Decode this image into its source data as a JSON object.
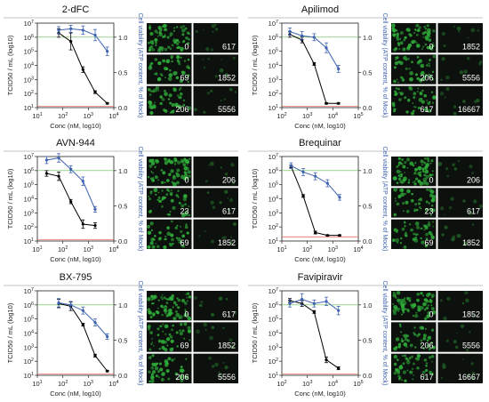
{
  "chart_data": [
    {
      "type": "line",
      "title": "2-dFC",
      "xlabel": "Conc (nM, log10)",
      "ylabel": "TCID50 / mL (log10)",
      "ylabel2": "Cell viability (ATP content, % of Mock)",
      "x_ticks": [
        "10^1",
        "10^2",
        "10^3",
        "10^4"
      ],
      "xlim_log10": [
        1,
        4
      ],
      "y_ticks": [
        "10^1",
        "10^2",
        "10^3",
        "10^4",
        "10^5",
        "10^6",
        "10^7"
      ],
      "ylim_log10": [
        1,
        7
      ],
      "y2_ticks": [
        "0.0",
        "0.5",
        "1.0"
      ],
      "y2lim": [
        0,
        1.2
      ],
      "series": [
        {
          "color": "#000000",
          "axis": "left",
          "x": [
            69,
            206,
            617,
            1852,
            5556
          ],
          "y_log10": [
            6.3,
            5.7,
            3.7,
            2.1,
            1.3
          ],
          "err_log10": [
            0.3,
            0.6,
            0.2,
            0.1,
            0.05
          ]
        },
        {
          "color": "#3f63b0",
          "axis": "right",
          "x": [
            69,
            206,
            617,
            1852,
            5556
          ],
          "y": [
            1.1,
            1.12,
            1.1,
            1.03,
            0.8
          ],
          "err": [
            0.05,
            0.05,
            0.06,
            0.08,
            0.06
          ]
        }
      ],
      "hline_left_log10": 1.1,
      "hline_right": 1.0,
      "panels": [
        "0",
        "617",
        "69",
        "1852",
        "206",
        "5556"
      ]
    },
    {
      "type": "line",
      "title": "Apilimod",
      "xlabel": "Conc (nM, log10)",
      "ylabel": "TCID50 / mL (log10)",
      "ylabel2": "Cell viability (ATP content, % of Mock)",
      "x_ticks": [
        "10^2",
        "10^3",
        "10^4",
        "10^5"
      ],
      "xlim_log10": [
        2,
        5
      ],
      "y_ticks": [
        "10^1",
        "10^2",
        "10^3",
        "10^4",
        "10^5",
        "10^6",
        "10^7"
      ],
      "ylim_log10": [
        1,
        7
      ],
      "y2_ticks": [
        "0.0",
        "0.5",
        "1.0"
      ],
      "y2lim": [
        0,
        1.2
      ],
      "series": [
        {
          "color": "#000000",
          "axis": "left",
          "x": [
            206,
            617,
            1852,
            5556,
            16667
          ],
          "y_log10": [
            6.2,
            5.8,
            4.1,
            1.3,
            1.3
          ],
          "err_log10": [
            0.2,
            0.2,
            0.1,
            0.05,
            0.05
          ]
        },
        {
          "color": "#3f63b0",
          "axis": "right",
          "x": [
            206,
            617,
            1852,
            5556,
            16667
          ],
          "y": [
            1.08,
            1.02,
            1.0,
            0.85,
            0.55
          ],
          "err": [
            0.05,
            0.06,
            0.05,
            0.07,
            0.05
          ]
        }
      ],
      "hline_left_log10": 1.1,
      "hline_right": 1.0,
      "panels": [
        "0",
        "1852",
        "206",
        "5556",
        "617",
        "16667"
      ]
    },
    {
      "type": "line",
      "title": "AVN-944",
      "xlabel": "Conc (nM, log10)",
      "ylabel": "TCID50 / mL (log10)",
      "ylabel2": "Cell viability (ATP content, % of Mock)",
      "x_ticks": [
        "10^1",
        "10^2",
        "10^3",
        "10^4"
      ],
      "xlim_log10": [
        1,
        4
      ],
      "y_ticks": [
        "10^1",
        "10^2",
        "10^3",
        "10^4",
        "10^5",
        "10^6",
        "10^7"
      ],
      "ylim_log10": [
        1,
        7
      ],
      "y2_ticks": [
        "0.0",
        "0.5",
        "1.0"
      ],
      "y2lim": [
        0,
        1.2
      ],
      "series": [
        {
          "color": "#000000",
          "axis": "left",
          "x": [
            23,
            69,
            206,
            617,
            1852
          ],
          "y_log10": [
            5.8,
            5.6,
            3.8,
            2.2,
            2.1
          ],
          "err_log10": [
            0.2,
            0.3,
            0.15,
            0.3,
            0.2
          ]
        },
        {
          "color": "#3f63b0",
          "axis": "right",
          "x": [
            23,
            69,
            206,
            617,
            1852
          ],
          "y": [
            1.15,
            1.18,
            1.02,
            0.85,
            0.45
          ],
          "err": [
            0.05,
            0.06,
            0.05,
            0.06,
            0.04
          ]
        }
      ],
      "hline_left_log10": 1.1,
      "hline_right": 1.0,
      "panels": [
        "0",
        "206",
        "23",
        "617",
        "69",
        "1852"
      ]
    },
    {
      "type": "line",
      "title": "Brequinar",
      "xlabel": "Conc (nM, log10)",
      "ylabel": "TCID50 / mL (log10)",
      "ylabel2": "Cell viability (ATP content, % of Mock)",
      "x_ticks": [
        "10^1",
        "10^2",
        "10^3",
        "10^4"
      ],
      "xlim_log10": [
        1,
        4
      ],
      "y_ticks": [
        "10^1",
        "10^2",
        "10^3",
        "10^4",
        "10^5",
        "10^6",
        "10^7"
      ],
      "ylim_log10": [
        1,
        7
      ],
      "y2_ticks": [
        "0.0",
        "0.5",
        "1.0"
      ],
      "y2lim": [
        0,
        1.2
      ],
      "series": [
        {
          "color": "#000000",
          "axis": "left",
          "x": [
            23,
            69,
            206,
            617,
            1852
          ],
          "y_log10": [
            6.3,
            4.2,
            1.6,
            1.4,
            1.4
          ],
          "err_log10": [
            0.1,
            0.1,
            0.1,
            0.05,
            0.05
          ]
        },
        {
          "color": "#3f63b0",
          "axis": "right",
          "x": [
            23,
            69,
            206,
            617,
            1852
          ],
          "y": [
            1.07,
            0.98,
            0.92,
            0.82,
            0.62
          ],
          "err": [
            0.04,
            0.05,
            0.05,
            0.05,
            0.04
          ]
        }
      ],
      "hline_left_log10": 1.3,
      "hline_right": 1.0,
      "panels": [
        "0",
        "206",
        "23",
        "617",
        "69",
        "1852"
      ]
    },
    {
      "type": "line",
      "title": "BX-795",
      "xlabel": "Conc (nM, log10)",
      "ylabel": "TCID50 / mL (log10)",
      "ylabel2": "Cell viability (ATP content, % of Mock)",
      "x_ticks": [
        "10^1",
        "10^2",
        "10^3",
        "10^4"
      ],
      "xlim_log10": [
        1,
        4
      ],
      "y_ticks": [
        "10^1",
        "10^2",
        "10^3",
        "10^4",
        "10^5",
        "10^6",
        "10^7"
      ],
      "ylim_log10": [
        1,
        7
      ],
      "y2_ticks": [
        "0.0",
        "0.5",
        "1.0"
      ],
      "y2lim": [
        0,
        1.2
      ],
      "series": [
        {
          "color": "#000000",
          "axis": "left",
          "x": [
            69,
            206,
            617,
            1852,
            5556
          ],
          "y_log10": [
            6.1,
            5.9,
            4.6,
            2.4,
            1.3
          ],
          "err_log10": [
            0.3,
            0.3,
            0.1,
            0.1,
            0.05
          ]
        },
        {
          "color": "#3f63b0",
          "axis": "right",
          "x": [
            69,
            206,
            617,
            1852,
            5556
          ],
          "y": [
            1.03,
            1.0,
            0.92,
            0.75,
            0.55
          ],
          "err": [
            0.06,
            0.05,
            0.05,
            0.05,
            0.04
          ]
        }
      ],
      "hline_left_log10": 1.1,
      "hline_right": 1.0,
      "panels": [
        "0",
        "617",
        "69",
        "1852",
        "206",
        "5556"
      ]
    },
    {
      "type": "line",
      "title": "Favipiravir",
      "xlabel": "Conc (nM, log10)",
      "ylabel": "TCID50 / mL (log10)",
      "ylabel2": "Cell viability (ATP content, % of Mock)",
      "x_ticks": [
        "10^2",
        "10^3",
        "10^4",
        "10^5"
      ],
      "xlim_log10": [
        2,
        5
      ],
      "y_ticks": [
        "10^1",
        "10^2",
        "10^3",
        "10^4",
        "10^5",
        "10^6",
        "10^7"
      ],
      "ylim_log10": [
        1,
        7
      ],
      "y2_ticks": [
        "0.0",
        "0.5",
        "1.0"
      ],
      "y2lim": [
        0,
        1.2
      ],
      "series": [
        {
          "color": "#000000",
          "axis": "left",
          "x": [
            206,
            617,
            1852,
            5556,
            16667
          ],
          "y_log10": [
            6.3,
            6.1,
            5.5,
            2.1,
            1.5
          ],
          "err_log10": [
            0.15,
            0.2,
            0.1,
            0.2,
            0.1
          ]
        },
        {
          "color": "#3f63b0",
          "axis": "right",
          "x": [
            206,
            617,
            1852,
            5556,
            16667
          ],
          "y": [
            1.02,
            1.08,
            1.02,
            1.05,
            0.92
          ],
          "err": [
            0.05,
            0.08,
            0.05,
            0.06,
            0.06
          ]
        }
      ],
      "hline_left_log10": 1.1,
      "hline_right": 1.0,
      "panels": [
        "0",
        "1852",
        "206",
        "5556",
        "617",
        "16667"
      ]
    }
  ]
}
